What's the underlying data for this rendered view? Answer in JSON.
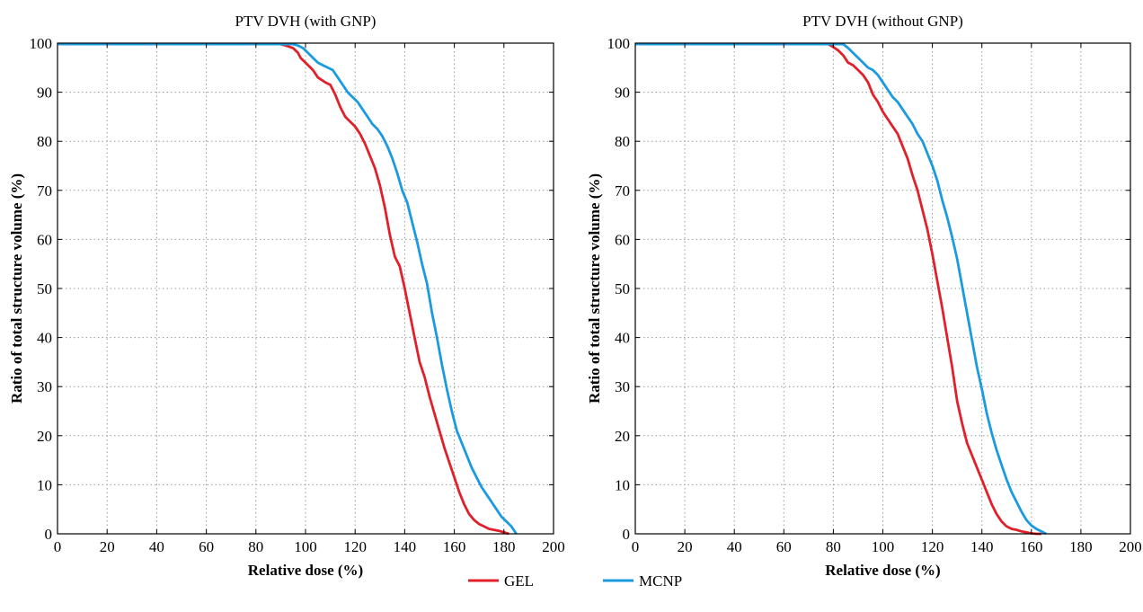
{
  "colors": {
    "GEL": "#e0202a",
    "MCNP": "#1a9be0"
  },
  "legend": [
    {
      "name": "GEL",
      "color": "#e0202a"
    },
    {
      "name": "MCNP",
      "color": "#1a9be0"
    }
  ],
  "chart_data": [
    {
      "type": "line",
      "title": "PTV DVH (with GNP)",
      "xlabel": "Relative dose (%)",
      "ylabel": "Ratio of total structure volume (%)",
      "xlim": [
        0,
        200
      ],
      "ylim": [
        0,
        100
      ],
      "xticks": [
        0,
        20,
        40,
        60,
        80,
        100,
        120,
        140,
        160,
        180,
        200
      ],
      "yticks": [
        0,
        10,
        20,
        30,
        40,
        50,
        60,
        70,
        80,
        90,
        100
      ],
      "grid": true,
      "series": [
        {
          "name": "GEL",
          "color": "#e0202a",
          "x": [
            0,
            90,
            92,
            95,
            97,
            98,
            100,
            103,
            105,
            108,
            110,
            112,
            114,
            116,
            118,
            120,
            122,
            124,
            126,
            128,
            130,
            132,
            134,
            136,
            138,
            140,
            142,
            144,
            146,
            148,
            150,
            152,
            154,
            156,
            158,
            160,
            162,
            164,
            166,
            168,
            170,
            172,
            174,
            176,
            178,
            180,
            182
          ],
          "y": [
            99.8,
            99.8,
            99.5,
            99,
            98,
            97,
            96,
            94.5,
            93,
            92,
            91.5,
            89.5,
            87,
            85,
            84,
            83,
            81.5,
            79.5,
            77,
            74.5,
            71,
            66.5,
            61,
            56.5,
            54.5,
            50,
            45,
            40,
            35,
            32,
            28,
            24.5,
            21,
            17.5,
            14.5,
            11.5,
            8.5,
            6,
            4,
            2.8,
            2,
            1.5,
            1,
            0.8,
            0.6,
            0.3,
            0
          ]
        },
        {
          "name": "MCNP",
          "color": "#1a9be0",
          "x": [
            0,
            95,
            97,
            99,
            101,
            103,
            105,
            107,
            109,
            111,
            113,
            115,
            117,
            119,
            121,
            123,
            125,
            127,
            129,
            131,
            133,
            135,
            137,
            139,
            141,
            143,
            145,
            147,
            149,
            151,
            153,
            155,
            157,
            159,
            161,
            163,
            165,
            167,
            169,
            171,
            173,
            175,
            177,
            179,
            181,
            183,
            185
          ],
          "y": [
            99.8,
            99.8,
            99.5,
            99,
            98,
            97,
            96,
            95.5,
            95,
            94.5,
            93,
            91.5,
            90,
            89,
            88,
            86.5,
            85,
            83.5,
            82.5,
            81,
            79,
            76.5,
            73.5,
            70,
            67.5,
            63.5,
            59.5,
            55,
            51,
            45,
            40,
            34.5,
            29.5,
            25,
            21,
            18.5,
            16,
            13.5,
            11.5,
            9.5,
            8,
            6.5,
            5,
            3.5,
            2.5,
            1.5,
            0
          ]
        }
      ]
    },
    {
      "type": "line",
      "title": "PTV DVH (without GNP)",
      "xlabel": "Relative dose (%)",
      "ylabel": "Ratio of total structure volume (%)",
      "xlim": [
        0,
        200
      ],
      "ylim": [
        0,
        100
      ],
      "xticks": [
        0,
        20,
        40,
        60,
        80,
        100,
        120,
        140,
        160,
        180,
        200
      ],
      "yticks": [
        0,
        10,
        20,
        30,
        40,
        50,
        60,
        70,
        80,
        90,
        100
      ],
      "grid": true,
      "series": [
        {
          "name": "GEL",
          "color": "#e0202a",
          "x": [
            0,
            78,
            80,
            82,
            84,
            86,
            88,
            90,
            92,
            94,
            96,
            98,
            100,
            102,
            104,
            106,
            108,
            110,
            112,
            114,
            116,
            118,
            120,
            122,
            124,
            126,
            128,
            130,
            132,
            134,
            136,
            138,
            140,
            142,
            144,
            146,
            148,
            150,
            152,
            154,
            156,
            158,
            160,
            162,
            164
          ],
          "y": [
            99.8,
            99.8,
            99.2,
            98.5,
            97.5,
            96,
            95.5,
            94.5,
            93.5,
            92,
            89.5,
            88,
            86,
            84.5,
            83,
            81.5,
            79,
            76.5,
            73,
            70,
            66,
            62,
            57,
            51.5,
            46,
            40,
            34,
            27,
            22.5,
            18.5,
            16,
            13.5,
            11,
            8.5,
            6,
            4,
            2.5,
            1.5,
            1,
            0.8,
            0.5,
            0.3,
            0.1,
            0,
            0
          ]
        },
        {
          "name": "MCNP",
          "color": "#1a9be0",
          "x": [
            0,
            84,
            86,
            88,
            90,
            92,
            94,
            96,
            98,
            100,
            102,
            104,
            106,
            108,
            110,
            112,
            114,
            116,
            118,
            120,
            122,
            124,
            126,
            128,
            130,
            132,
            134,
            136,
            138,
            140,
            142,
            144,
            146,
            148,
            150,
            152,
            154,
            156,
            158,
            160,
            162,
            164,
            166
          ],
          "y": [
            99.8,
            99.8,
            99,
            98,
            97,
            96,
            95,
            94.5,
            93.5,
            92,
            90.5,
            89,
            88,
            86.5,
            85,
            83.5,
            81.5,
            80,
            77.5,
            75,
            72,
            68,
            64.5,
            60.5,
            56,
            50.5,
            45,
            39.5,
            34,
            29.5,
            24.5,
            20.5,
            17,
            14,
            11,
            8.5,
            6.5,
            4.5,
            2.8,
            1.7,
            1,
            0.5,
            0
          ]
        }
      ]
    }
  ]
}
